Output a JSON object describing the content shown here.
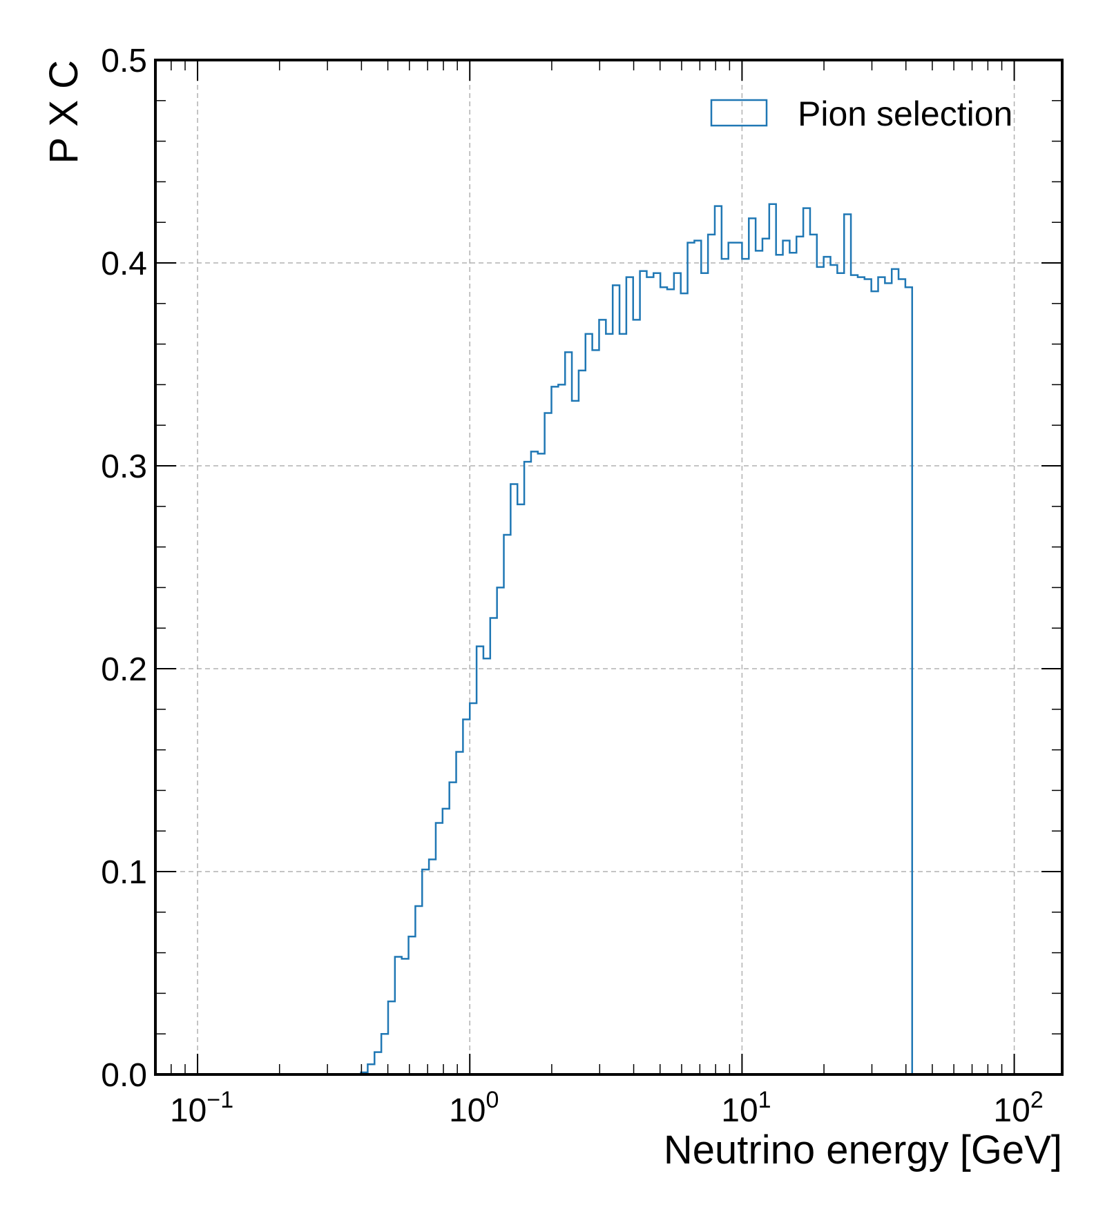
{
  "chart_data": {
    "type": "histogram",
    "xlabel": "Neutrino energy [GeV]",
    "ylabel": "P X C",
    "xscale": "log",
    "xlim": [
      0.07,
      150
    ],
    "ylim": [
      0,
      0.5
    ],
    "grid": true,
    "legend": {
      "position": "top-right",
      "entries": [
        "Pion selection"
      ]
    },
    "colors": {
      "series": "#1f77b4",
      "grid": "#b0b0b0",
      "axis": "#000000"
    },
    "x_ticks": [
      {
        "base": "10",
        "exp": "−1",
        "value": 0.1
      },
      {
        "base": "10",
        "exp": "0",
        "value": 1
      },
      {
        "base": "10",
        "exp": "1",
        "value": 10
      },
      {
        "base": "10",
        "exp": "2",
        "value": 100
      }
    ],
    "y_ticks": [
      "0.0",
      "0.1",
      "0.2",
      "0.3",
      "0.4",
      "0.5"
    ],
    "series": [
      {
        "name": "Pion selection",
        "bin_range": [
          0.1,
          100
        ],
        "n_bins": 120,
        "values": [
          0,
          0,
          0,
          0,
          0,
          0,
          0,
          0,
          0,
          0,
          0,
          0,
          0,
          0,
          0,
          0,
          0,
          0,
          0,
          0,
          0,
          0,
          0,
          0,
          0.001,
          0.005,
          0.011,
          0.02,
          0.036,
          0.058,
          0.057,
          0.068,
          0.083,
          0.101,
          0.106,
          0.124,
          0.131,
          0.144,
          0.159,
          0.175,
          0.183,
          0.211,
          0.205,
          0.225,
          0.24,
          0.266,
          0.291,
          0.281,
          0.302,
          0.307,
          0.306,
          0.326,
          0.339,
          0.34,
          0.356,
          0.332,
          0.347,
          0.365,
          0.357,
          0.372,
          0.365,
          0.389,
          0.365,
          0.393,
          0.372,
          0.396,
          0.393,
          0.395,
          0.388,
          0.387,
          0.395,
          0.385,
          0.41,
          0.411,
          0.395,
          0.414,
          0.428,
          0.402,
          0.41,
          0.41,
          0.402,
          0.422,
          0.406,
          0.412,
          0.429,
          0.404,
          0.411,
          0.405,
          0.413,
          0.427,
          0.414,
          0.398,
          0.403,
          0.399,
          0.395,
          0.424,
          0.394,
          0.393,
          0.392,
          0.386,
          0.393,
          0.39,
          0.397,
          0.392,
          0.388,
          0,
          0,
          0,
          0,
          0,
          0,
          0,
          0,
          0,
          0,
          0,
          0,
          0,
          0,
          0
        ]
      }
    ]
  }
}
